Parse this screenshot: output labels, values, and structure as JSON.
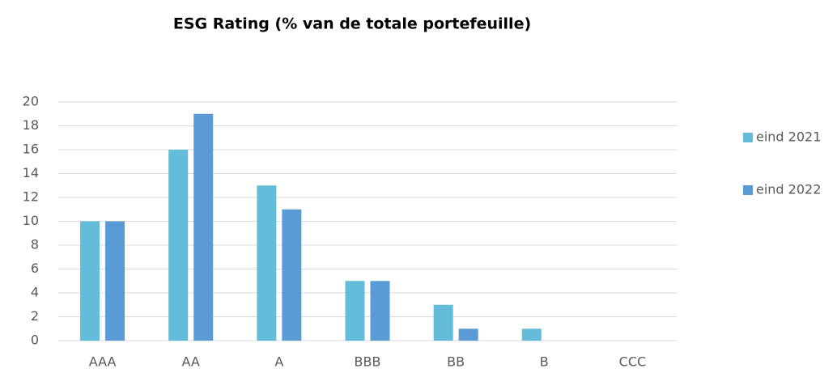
{
  "chart_data": {
    "type": "bar",
    "title": "ESG Rating (% van de totale portefeuille)",
    "categories": [
      "AAA",
      "AA",
      "A",
      "BBB",
      "BB",
      "B",
      "CCC"
    ],
    "series": [
      {
        "name": "eind 2021",
        "color": "#63bcd9",
        "values": [
          10,
          16,
          13,
          5,
          3,
          1,
          0
        ]
      },
      {
        "name": "eind 2022",
        "color": "#5b9bd5",
        "values": [
          10,
          19,
          11,
          5,
          1,
          0,
          0
        ]
      }
    ],
    "ylim": [
      0,
      20
    ],
    "yticks": [
      0,
      2,
      4,
      6,
      8,
      10,
      12,
      14,
      16,
      18,
      20
    ],
    "grid": true,
    "legend": "right"
  }
}
